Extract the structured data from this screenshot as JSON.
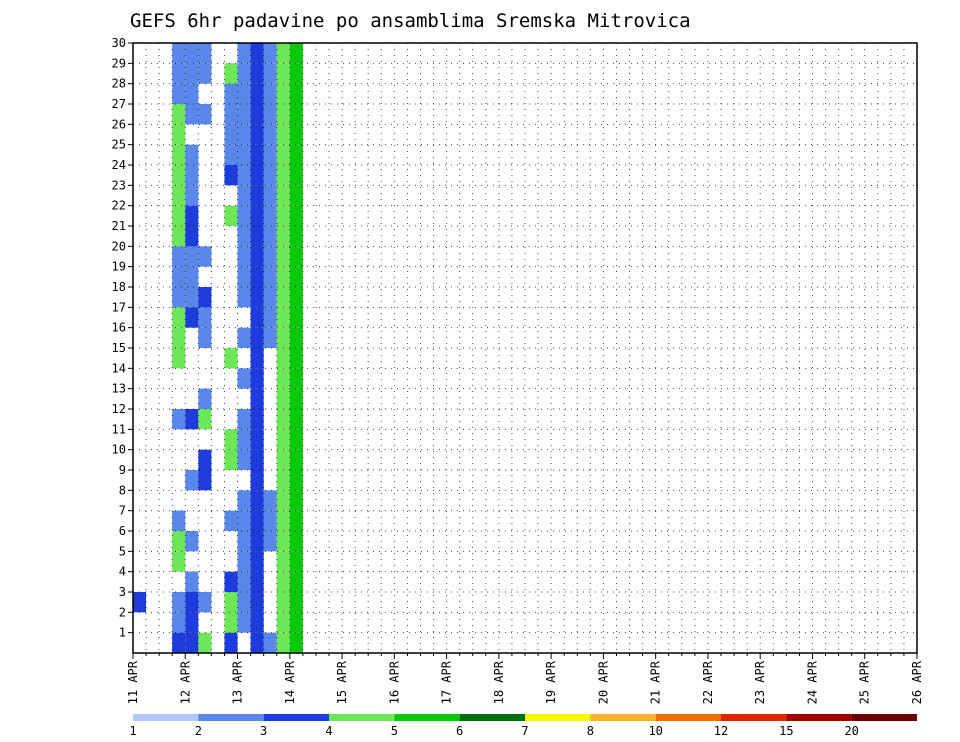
{
  "chart_data": {
    "type": "heatmap",
    "title": "GEFS 6hr padavine po ansamblima Sremska Mitrovica",
    "xlabel": "",
    "ylabel": "",
    "x_tick_labels": [
      "11 APR",
      "12 APR",
      "13 APR",
      "14 APR",
      "15 APR",
      "16 APR",
      "17 APR",
      "18 APR",
      "19 APR",
      "20 APR",
      "21 APR",
      "22 APR",
      "23 APR",
      "24 APR",
      "25 APR",
      "26 APR"
    ],
    "y_tick_labels": [
      "1",
      "2",
      "3",
      "4",
      "5",
      "6",
      "7",
      "8",
      "9",
      "10",
      "11",
      "12",
      "13",
      "14",
      "15",
      "16",
      "17",
      "18",
      "19",
      "20",
      "21",
      "22",
      "23",
      "24",
      "25",
      "26",
      "27",
      "28",
      "29",
      "30"
    ],
    "x_range": [
      0,
      60
    ],
    "y_range": [
      0,
      30
    ],
    "grid": true,
    "legend": {
      "placement": "bottom",
      "labels": [
        "1",
        "2",
        "3",
        "4",
        "5",
        "6",
        "7",
        "8",
        "10",
        "12",
        "15",
        "20"
      ],
      "colors": [
        "#b4c8f8",
        "#5a87ea",
        "#1e3cdc",
        "#6ee65a",
        "#0ac80a",
        "#006e0f",
        "#f8f800",
        "#f8b428",
        "#f06e00",
        "#dc2800",
        "#a00000",
        "#6e0000"
      ]
    },
    "cells": [
      [
        0,
        2,
        2
      ],
      [
        3,
        0,
        2
      ],
      [
        3,
        1,
        1
      ],
      [
        3,
        2,
        1
      ],
      [
        3,
        4,
        3
      ],
      [
        3,
        5,
        3
      ],
      [
        3,
        6,
        1
      ],
      [
        3,
        11,
        1
      ],
      [
        3,
        14,
        3
      ],
      [
        3,
        15,
        3
      ],
      [
        3,
        16,
        3
      ],
      [
        3,
        17,
        1
      ],
      [
        3,
        18,
        1
      ],
      [
        3,
        19,
        1
      ],
      [
        3,
        20,
        3
      ],
      [
        3,
        21,
        3
      ],
      [
        3,
        22,
        3
      ],
      [
        3,
        23,
        3
      ],
      [
        3,
        24,
        3
      ],
      [
        3,
        25,
        3
      ],
      [
        3,
        26,
        3
      ],
      [
        3,
        27,
        1
      ],
      [
        3,
        28,
        1
      ],
      [
        3,
        29,
        1
      ],
      [
        4,
        0,
        2
      ],
      [
        4,
        1,
        2
      ],
      [
        4,
        2,
        2
      ],
      [
        4,
        3,
        1
      ],
      [
        4,
        5,
        1
      ],
      [
        4,
        8,
        1
      ],
      [
        4,
        11,
        2
      ],
      [
        4,
        16,
        2
      ],
      [
        4,
        17,
        1
      ],
      [
        4,
        18,
        1
      ],
      [
        4,
        19,
        1
      ],
      [
        4,
        20,
        2
      ],
      [
        4,
        21,
        2
      ],
      [
        4,
        22,
        1
      ],
      [
        4,
        23,
        1
      ],
      [
        4,
        24,
        1
      ],
      [
        4,
        26,
        1
      ],
      [
        4,
        27,
        1
      ],
      [
        4,
        28,
        1
      ],
      [
        4,
        29,
        1
      ],
      [
        5,
        0,
        3
      ],
      [
        5,
        2,
        1
      ],
      [
        5,
        8,
        2
      ],
      [
        5,
        9,
        2
      ],
      [
        5,
        11,
        3
      ],
      [
        5,
        12,
        1
      ],
      [
        5,
        15,
        1
      ],
      [
        5,
        16,
        1
      ],
      [
        5,
        17,
        2
      ],
      [
        5,
        19,
        1
      ],
      [
        5,
        26,
        1
      ],
      [
        5,
        28,
        1
      ],
      [
        5,
        29,
        1
      ],
      [
        7,
        0,
        2
      ],
      [
        7,
        1,
        3
      ],
      [
        7,
        2,
        3
      ],
      [
        7,
        3,
        2
      ],
      [
        7,
        6,
        1
      ],
      [
        7,
        9,
        3
      ],
      [
        7,
        10,
        3
      ],
      [
        7,
        14,
        3
      ],
      [
        7,
        21,
        3
      ],
      [
        7,
        23,
        2
      ],
      [
        7,
        24,
        1
      ],
      [
        7,
        25,
        1
      ],
      [
        7,
        26,
        1
      ],
      [
        7,
        27,
        1
      ],
      [
        7,
        28,
        3
      ],
      [
        8,
        1,
        1
      ],
      [
        8,
        2,
        1
      ],
      [
        8,
        3,
        1
      ],
      [
        8,
        4,
        1
      ],
      [
        8,
        5,
        1
      ],
      [
        8,
        6,
        1
      ],
      [
        8,
        7,
        1
      ],
      [
        8,
        9,
        1
      ],
      [
        8,
        10,
        1
      ],
      [
        8,
        11,
        1
      ],
      [
        8,
        13,
        1
      ],
      [
        8,
        15,
        1
      ],
      [
        8,
        17,
        1
      ],
      [
        8,
        18,
        1
      ],
      [
        8,
        19,
        1
      ],
      [
        8,
        20,
        1
      ],
      [
        8,
        21,
        1
      ],
      [
        8,
        22,
        1
      ],
      [
        8,
        23,
        1
      ],
      [
        8,
        24,
        1
      ],
      [
        8,
        25,
        1
      ],
      [
        8,
        26,
        1
      ],
      [
        8,
        27,
        1
      ],
      [
        8,
        28,
        1
      ],
      [
        8,
        29,
        1
      ],
      [
        9,
        0,
        2
      ],
      [
        9,
        1,
        2
      ],
      [
        9,
        2,
        2
      ],
      [
        9,
        3,
        2
      ],
      [
        9,
        4,
        2
      ],
      [
        9,
        5,
        2
      ],
      [
        9,
        6,
        2
      ],
      [
        9,
        7,
        2
      ],
      [
        9,
        8,
        2
      ],
      [
        9,
        9,
        2
      ],
      [
        9,
        10,
        2
      ],
      [
        9,
        11,
        2
      ],
      [
        9,
        12,
        2
      ],
      [
        9,
        13,
        2
      ],
      [
        9,
        14,
        2
      ],
      [
        9,
        15,
        2
      ],
      [
        9,
        16,
        2
      ],
      [
        9,
        17,
        2
      ],
      [
        9,
        18,
        2
      ],
      [
        9,
        19,
        2
      ],
      [
        9,
        20,
        2
      ],
      [
        9,
        21,
        2
      ],
      [
        9,
        22,
        2
      ],
      [
        9,
        23,
        2
      ],
      [
        9,
        24,
        2
      ],
      [
        9,
        25,
        2
      ],
      [
        9,
        26,
        2
      ],
      [
        9,
        27,
        2
      ],
      [
        9,
        28,
        2
      ],
      [
        9,
        29,
        2
      ],
      [
        10,
        0,
        1
      ],
      [
        10,
        5,
        1
      ],
      [
        10,
        6,
        1
      ],
      [
        10,
        7,
        1
      ],
      [
        10,
        15,
        1
      ],
      [
        10,
        16,
        1
      ],
      [
        10,
        17,
        1
      ],
      [
        10,
        18,
        1
      ],
      [
        10,
        19,
        1
      ],
      [
        10,
        20,
        1
      ],
      [
        10,
        21,
        1
      ],
      [
        10,
        22,
        1
      ],
      [
        10,
        23,
        1
      ],
      [
        10,
        24,
        1
      ],
      [
        10,
        25,
        1
      ],
      [
        10,
        26,
        1
      ],
      [
        10,
        27,
        1
      ],
      [
        10,
        28,
        1
      ],
      [
        10,
        29,
        1
      ],
      [
        11,
        0,
        3
      ],
      [
        11,
        1,
        3
      ],
      [
        11,
        2,
        3
      ],
      [
        11,
        3,
        3
      ],
      [
        11,
        4,
        3
      ],
      [
        11,
        5,
        3
      ],
      [
        11,
        6,
        3
      ],
      [
        11,
        7,
        3
      ],
      [
        11,
        8,
        3
      ],
      [
        11,
        9,
        3
      ],
      [
        11,
        10,
        3
      ],
      [
        11,
        11,
        3
      ],
      [
        11,
        12,
        3
      ],
      [
        11,
        13,
        3
      ],
      [
        11,
        14,
        3
      ],
      [
        11,
        15,
        3
      ],
      [
        11,
        16,
        3
      ],
      [
        11,
        17,
        3
      ],
      [
        11,
        18,
        3
      ],
      [
        11,
        19,
        3
      ],
      [
        11,
        20,
        3
      ],
      [
        11,
        21,
        3
      ],
      [
        11,
        22,
        3
      ],
      [
        11,
        23,
        3
      ],
      [
        11,
        24,
        3
      ],
      [
        11,
        25,
        3
      ],
      [
        11,
        26,
        3
      ],
      [
        11,
        27,
        3
      ],
      [
        11,
        28,
        3
      ],
      [
        11,
        29,
        3
      ],
      [
        12,
        0,
        4
      ],
      [
        12,
        1,
        4
      ],
      [
        12,
        2,
        4
      ],
      [
        12,
        3,
        4
      ],
      [
        12,
        4,
        4
      ],
      [
        12,
        5,
        4
      ],
      [
        12,
        6,
        4
      ],
      [
        12,
        7,
        4
      ],
      [
        12,
        8,
        4
      ],
      [
        12,
        9,
        4
      ],
      [
        12,
        10,
        4
      ],
      [
        12,
        11,
        4
      ],
      [
        12,
        12,
        4
      ],
      [
        12,
        13,
        4
      ],
      [
        12,
        14,
        4
      ],
      [
        12,
        15,
        4
      ],
      [
        12,
        16,
        4
      ],
      [
        12,
        17,
        4
      ],
      [
        12,
        18,
        4
      ],
      [
        12,
        19,
        4
      ],
      [
        12,
        20,
        4
      ],
      [
        12,
        21,
        4
      ],
      [
        12,
        22,
        4
      ],
      [
        12,
        23,
        4
      ],
      [
        12,
        24,
        4
      ],
      [
        12,
        25,
        4
      ],
      [
        12,
        26,
        4
      ],
      [
        12,
        27,
        4
      ],
      [
        12,
        28,
        4
      ],
      [
        12,
        29,
        4
      ]
    ]
  }
}
